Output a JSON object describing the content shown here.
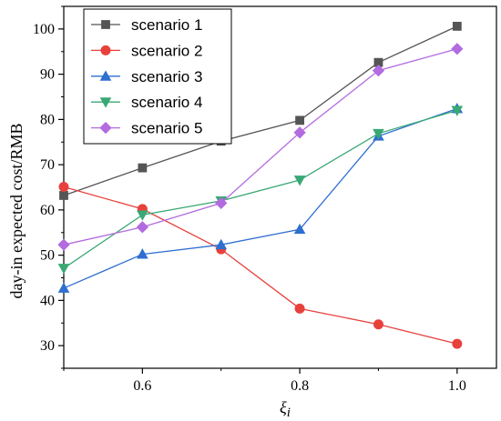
{
  "chart_data": {
    "type": "line",
    "title": "",
    "xlabel": "ξ",
    "xlabel_sub": "i",
    "ylabel": "day-in expected cost/RMB",
    "x": [
      0.5,
      0.6,
      0.7,
      0.8,
      0.9,
      1.0
    ],
    "xlim": [
      0.5,
      1.05
    ],
    "ylim": [
      25,
      105
    ],
    "xticks": [
      0.6,
      0.8,
      1.0
    ],
    "xtick_labels": [
      "0.6",
      "0.8",
      "1.0"
    ],
    "yticks": [
      30,
      40,
      50,
      60,
      70,
      80,
      90,
      100
    ],
    "ytick_labels": [
      "30",
      "40",
      "50",
      "60",
      "70",
      "80",
      "90",
      "100"
    ],
    "grid": false,
    "legend_position": "top-left",
    "series": [
      {
        "name": "scenario 1",
        "color": "#555555",
        "marker": "square",
        "values": [
          63.2,
          69.3,
          75.2,
          79.8,
          92.6,
          100.6
        ]
      },
      {
        "name": "scenario 2",
        "color": "#e8413c",
        "marker": "circle",
        "values": [
          65.1,
          60.2,
          51.3,
          38.2,
          34.7,
          30.4
        ]
      },
      {
        "name": "scenario 3",
        "color": "#2f6fd0",
        "marker": "triangle-up",
        "values": [
          42.7,
          50.2,
          52.3,
          55.7,
          76.3,
          82.4
        ]
      },
      {
        "name": "scenario 4",
        "color": "#3aa874",
        "marker": "triangle-down",
        "values": [
          47.1,
          58.9,
          62.0,
          66.6,
          76.9,
          82.0
        ]
      },
      {
        "name": "scenario 5",
        "color": "#b36be0",
        "marker": "diamond",
        "values": [
          52.3,
          56.2,
          61.5,
          77.1,
          90.8,
          95.6
        ]
      }
    ]
  }
}
